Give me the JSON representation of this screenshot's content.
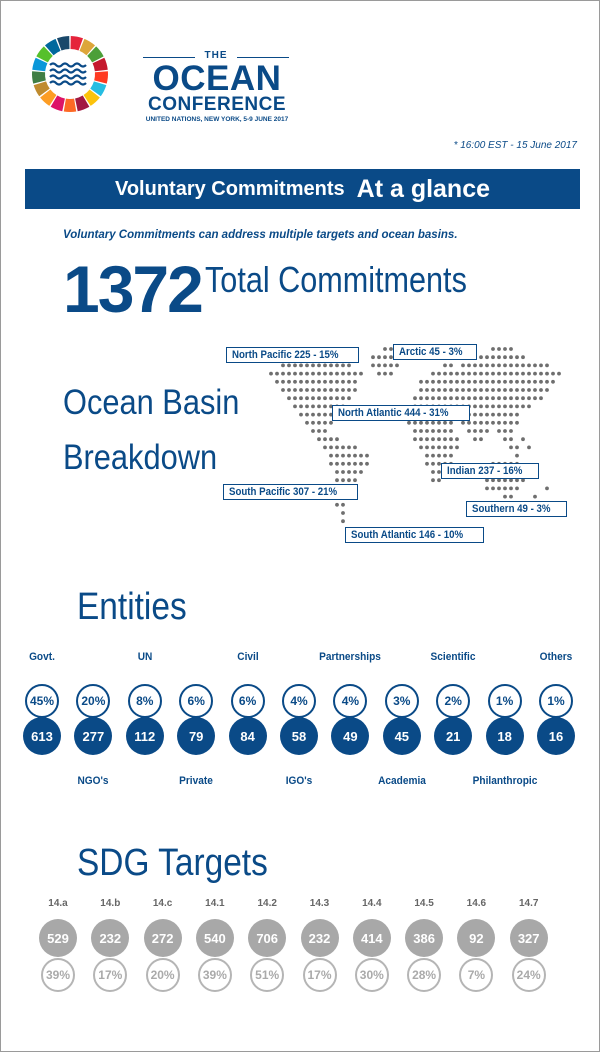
{
  "header": {
    "logo_the": "THE",
    "logo_ocean": "OCEAN",
    "logo_conference": "CONFERENCE",
    "logo_subtitle": "UNITED NATIONS, NEW YORK, 5-9 JUNE 2017",
    "timestamp": "* 16:00 EST - 15 June 2017",
    "wheel_colors": [
      "#e5243b",
      "#dda63a",
      "#4c9f38",
      "#c5192d",
      "#ff3a21",
      "#26bde2",
      "#fcc30b",
      "#a21942",
      "#fd6925",
      "#dd1367",
      "#fd9d24",
      "#bf8b2e",
      "#3f7e44",
      "#0a97d9",
      "#56c02b",
      "#00689d",
      "#19486a"
    ]
  },
  "banner": {
    "part1": "Voluntary Commitments",
    "part2": "At a glance"
  },
  "note": "Voluntary Commitments can address multiple targets and ocean basins.",
  "total": {
    "number": "1372",
    "label": "Total Commitments"
  },
  "basins": {
    "title_line1": "Ocean Basin",
    "title_line2": "Breakdown",
    "tags": [
      "North Pacific 225 - 15%",
      "Arctic 45 - 3%",
      "North Atlantic 444 - 31%",
      "Indian 237 - 16%",
      "South Pacific 307 - 21%",
      "Southern 49 - 3%",
      "South Atlantic 146 - 10%"
    ]
  },
  "entities": {
    "title": "Entities",
    "top_labels": [
      "Govt.",
      "UN",
      "Civil",
      "Partnerships",
      "Scientific",
      "Others"
    ],
    "bottom_labels": [
      "NGO's",
      "Private",
      "IGO's",
      "Academia",
      "Philanthropic"
    ],
    "items": [
      {
        "percent": "45%",
        "count": "613"
      },
      {
        "percent": "20%",
        "count": "277"
      },
      {
        "percent": "8%",
        "count": "112"
      },
      {
        "percent": "6%",
        "count": "79"
      },
      {
        "percent": "6%",
        "count": "84"
      },
      {
        "percent": "4%",
        "count": "58"
      },
      {
        "percent": "4%",
        "count": "49"
      },
      {
        "percent": "3%",
        "count": "45"
      },
      {
        "percent": "2%",
        "count": "21"
      },
      {
        "percent": "1%",
        "count": "18"
      },
      {
        "percent": "1%",
        "count": "16"
      }
    ]
  },
  "sdg": {
    "title": "SDG Targets",
    "items": [
      {
        "target": "14.a",
        "count": "529",
        "percent": "39%"
      },
      {
        "target": "14.b",
        "count": "232",
        "percent": "17%"
      },
      {
        "target": "14.c",
        "count": "272",
        "percent": "20%"
      },
      {
        "target": "14.1",
        "count": "540",
        "percent": "39%"
      },
      {
        "target": "14.2",
        "count": "706",
        "percent": "51%"
      },
      {
        "target": "14.3",
        "count": "232",
        "percent": "17%"
      },
      {
        "target": "14.4",
        "count": "414",
        "percent": "30%"
      },
      {
        "target": "14.5",
        "count": "386",
        "percent": "28%"
      },
      {
        "target": "14.6",
        "count": "92",
        "percent": "7%"
      },
      {
        "target": "14.7",
        "count": "327",
        "percent": "24%"
      }
    ]
  }
}
